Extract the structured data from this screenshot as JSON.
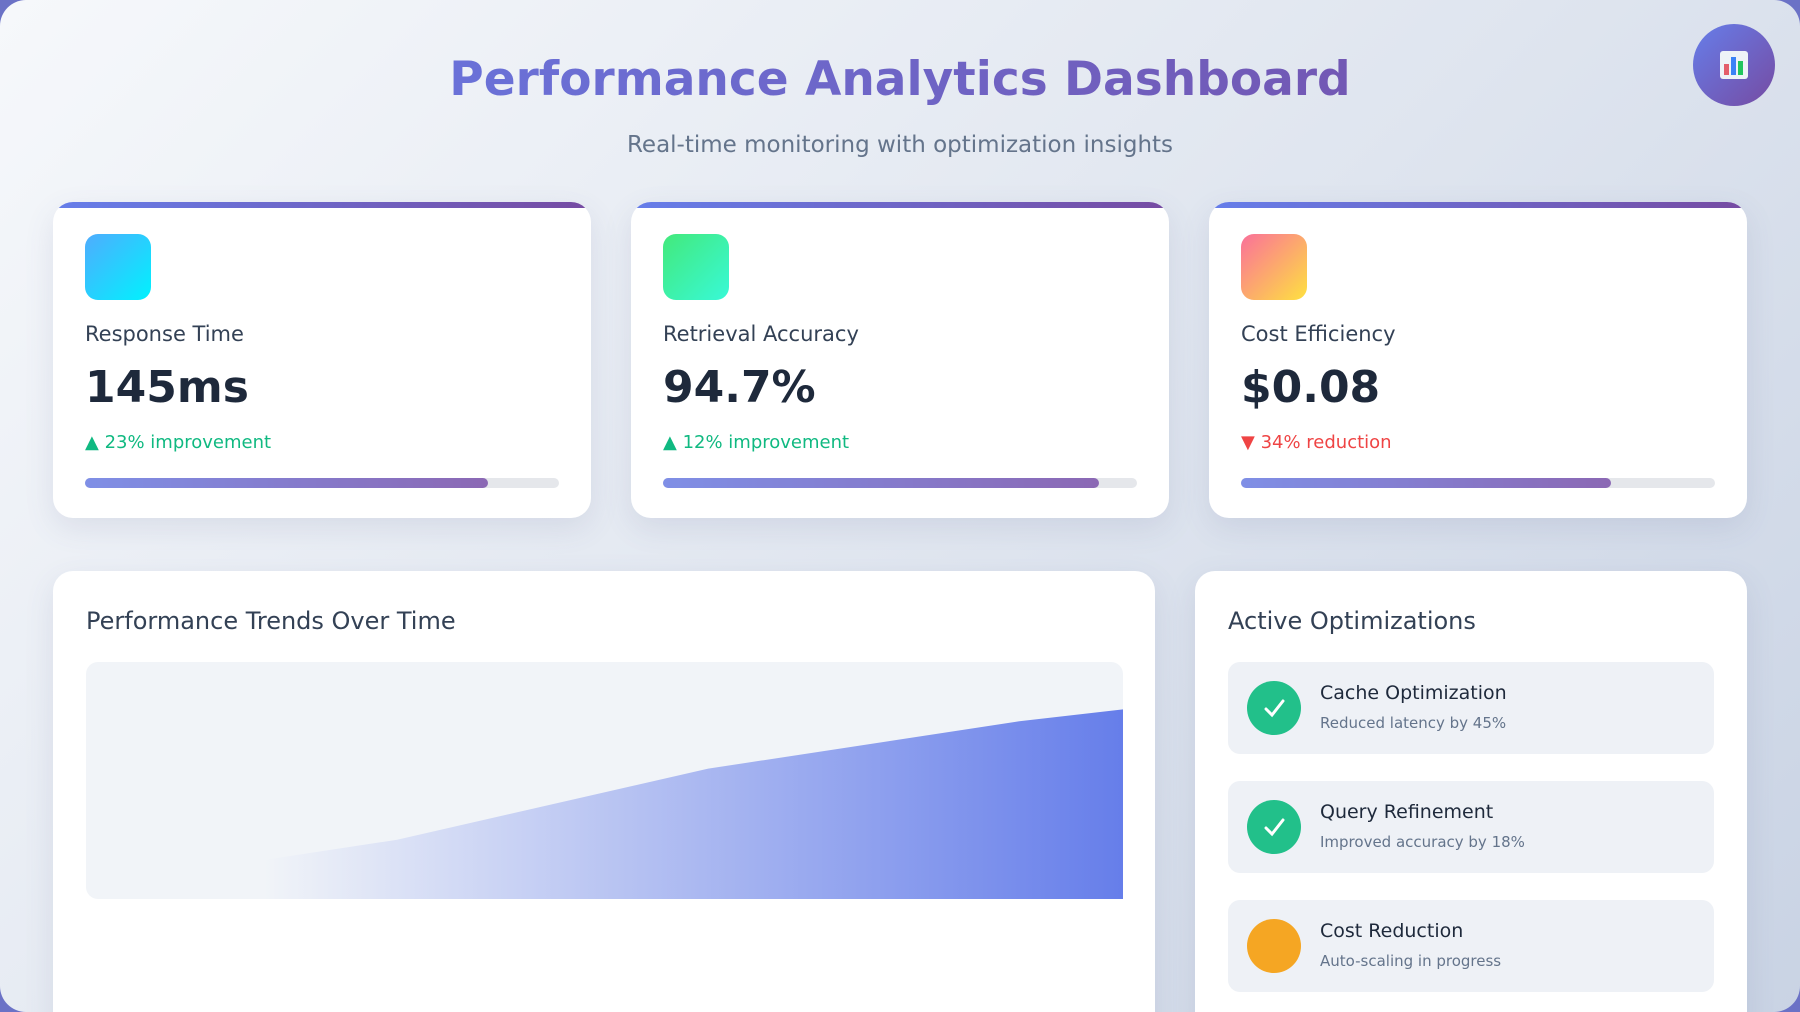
{
  "header": {
    "title": "Performance Analytics Dashboard",
    "subtitle": "Real-time monitoring with optimization insights"
  },
  "metrics": [
    {
      "label": "Response Time",
      "value": "145ms",
      "change": "▲ 23% improvement",
      "direction": "up",
      "progress": 85,
      "icon_colors": [
        "#4facfe",
        "#00f2fe"
      ]
    },
    {
      "label": "Retrieval Accuracy",
      "value": "94.7%",
      "change": "▲ 12% improvement",
      "direction": "up",
      "progress": 92,
      "icon_colors": [
        "#43e97b",
        "#38f9d7"
      ]
    },
    {
      "label": "Cost Efficiency",
      "value": "$0.08",
      "change": "▼ 34% reduction",
      "direction": "down",
      "progress": 78,
      "icon_colors": [
        "#fa709a",
        "#fee140"
      ]
    }
  ],
  "trend": {
    "title": "Performance Trends Over Time",
    "x": [
      10,
      15,
      30,
      60,
      90,
      100
    ],
    "values": [
      0,
      15,
      25,
      55,
      75,
      80
    ],
    "xlim": [
      0,
      100
    ],
    "ylim": [
      0,
      100
    ],
    "color": "#667eea"
  },
  "optimizations": {
    "title": "Active Optimizations",
    "items": [
      {
        "name": "Cache Optimization",
        "description": "Reduced latency by 45%",
        "status": "done"
      },
      {
        "name": "Query Refinement",
        "description": "Improved accuracy by 18%",
        "status": "done"
      },
      {
        "name": "Cost Reduction",
        "description": "Auto-scaling in progress",
        "status": "pending"
      }
    ]
  }
}
